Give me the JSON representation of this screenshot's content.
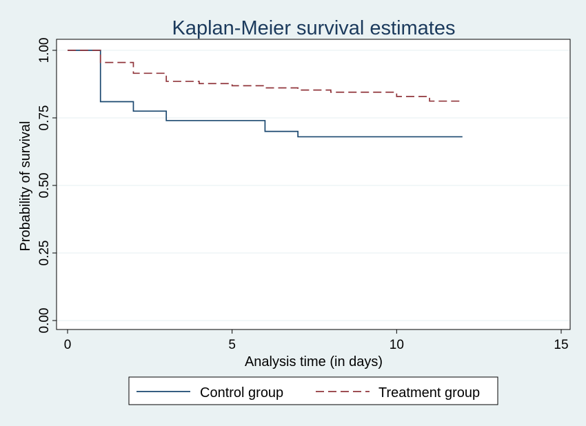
{
  "chart_data": {
    "type": "line",
    "title": "Kaplan-Meier survival estimates",
    "xlabel": "Analysis time (in days)",
    "ylabel": "Probability of survival",
    "xlim": [
      0,
      15
    ],
    "ylim": [
      0,
      1
    ],
    "xticks": [
      "0",
      "5",
      "10",
      "15"
    ],
    "xtick_values": [
      0,
      5,
      10,
      15
    ],
    "yticks": [
      "0.00",
      "0.25",
      "0.50",
      "0.75",
      "1.00"
    ],
    "ytick_values": [
      0,
      0.25,
      0.5,
      0.75,
      1.0
    ],
    "grid": true,
    "legend_position": "bottom",
    "step": true,
    "series": [
      {
        "name": "Control group",
        "color": "#1a476f",
        "dash": "solid",
        "x": [
          0,
          1,
          2,
          3,
          6,
          7,
          12
        ],
        "y": [
          1.0,
          0.81,
          0.775,
          0.74,
          0.7,
          0.68,
          0.68
        ]
      },
      {
        "name": "Treatment group",
        "color": "#90353b",
        "dash": "dashed",
        "x": [
          0,
          1,
          2,
          3,
          4,
          5,
          6,
          7,
          8,
          10,
          11,
          12
        ],
        "y": [
          1.0,
          0.955,
          0.915,
          0.885,
          0.877,
          0.869,
          0.861,
          0.853,
          0.845,
          0.829,
          0.812,
          0.812
        ]
      }
    ]
  }
}
